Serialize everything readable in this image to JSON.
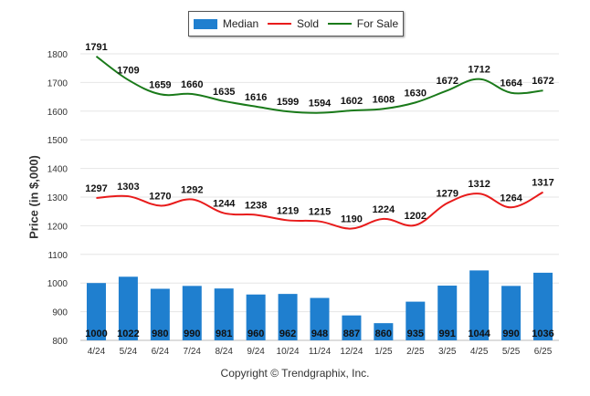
{
  "legend": {
    "median": "Median",
    "sold": "Sold",
    "for_sale": "For Sale"
  },
  "copyright": "Copyright © Trendgraphix, Inc.",
  "chart_data": {
    "type": "bar",
    "ylabel": "Price (in $,000)",
    "ylim": [
      800,
      1800
    ],
    "yticks": [
      800,
      900,
      1000,
      1100,
      1200,
      1300,
      1400,
      1500,
      1600,
      1700,
      1800
    ],
    "categories": [
      "4/24",
      "5/24",
      "6/24",
      "7/24",
      "8/24",
      "9/24",
      "10/24",
      "11/24",
      "12/24",
      "1/25",
      "2/25",
      "3/25",
      "4/25",
      "5/25",
      "6/25"
    ],
    "series": [
      {
        "name": "Median",
        "type": "bar",
        "color": "#1f7fcf",
        "values": [
          1000,
          1022,
          980,
          990,
          981,
          960,
          962,
          948,
          887,
          860,
          935,
          991,
          1044,
          990,
          1036
        ]
      },
      {
        "name": "Sold",
        "type": "line",
        "color": "#e81b1b",
        "values": [
          1297,
          1303,
          1270,
          1292,
          1244,
          1238,
          1219,
          1215,
          1190,
          1224,
          1202,
          1279,
          1312,
          1264,
          1317
        ]
      },
      {
        "name": "For Sale",
        "type": "line",
        "color": "#1a7a1a",
        "values": [
          1791,
          1709,
          1659,
          1660,
          1635,
          1616,
          1599,
          1594,
          1602,
          1608,
          1630,
          1672,
          1712,
          1664,
          1672
        ]
      }
    ],
    "grid": true,
    "legend_position": "top"
  }
}
